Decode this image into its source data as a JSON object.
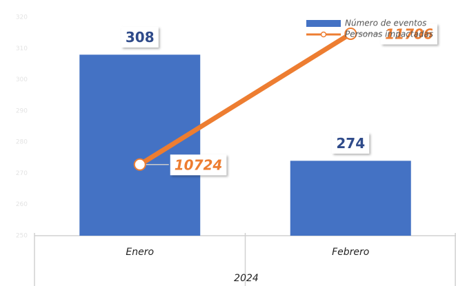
{
  "chart_data": {
    "type": "bar_line",
    "categories": [
      "Enero",
      "Febrero"
    ],
    "group_label": "2024",
    "series": [
      {
        "name": "Número de eventos",
        "type": "bar",
        "color": "#4472c4",
        "values": [
          308,
          274
        ]
      },
      {
        "name": "Personas impactadas",
        "type": "line",
        "axis": "y2",
        "color": "#ed7d31",
        "values": [
          10724,
          11706
        ]
      }
    ],
    "ylim": [
      250,
      320
    ],
    "yticks": [
      250,
      260,
      270,
      280,
      290,
      300,
      310,
      320
    ],
    "y2lim": [
      10190,
      11830
    ],
    "legend": "top-right"
  }
}
